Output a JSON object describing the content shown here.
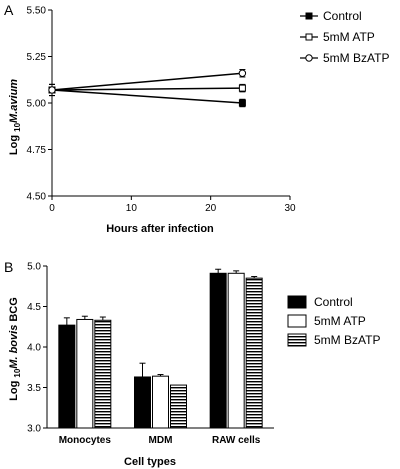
{
  "chart_data": [
    {
      "type": "line",
      "panel_label": "A",
      "xlabel": "Hours after infection",
      "ylabel_prefix": "Log ",
      "ylabel_sub": "10",
      "ylabel_italic": "M.avium",
      "x_ticks": [
        "0",
        "10",
        "20",
        "30"
      ],
      "y_ticks": [
        "4.50",
        "4.75",
        "5.00",
        "5.25",
        "5.50"
      ],
      "xlim": [
        0,
        30
      ],
      "ylim": [
        4.5,
        5.5
      ],
      "legend_position": "right",
      "series": [
        {
          "name": "Control",
          "marker": "filled-square",
          "x": [
            0,
            24
          ],
          "y": [
            5.07,
            5.0
          ],
          "err": [
            0.03,
            0.02
          ]
        },
        {
          "name": "5mM ATP",
          "marker": "open-square",
          "x": [
            0,
            24
          ],
          "y": [
            5.07,
            5.08
          ],
          "err": [
            0.03,
            0.02
          ]
        },
        {
          "name": "5mM BzATP",
          "marker": "open-circle",
          "x": [
            0,
            24
          ],
          "y": [
            5.07,
            5.16
          ],
          "err": [
            0.03,
            0.02
          ]
        }
      ]
    },
    {
      "type": "bar",
      "panel_label": "B",
      "xlabel": "Cell types",
      "ylabel_prefix": "Log ",
      "ylabel_sub": "10",
      "ylabel_italic": "M. bovis",
      "ylabel_suffix": " BCG",
      "categories": [
        "Monocytes",
        "MDM",
        "RAW cells"
      ],
      "y_ticks": [
        "3.0",
        "3.5",
        "4.0",
        "4.5",
        "5.0"
      ],
      "ylim": [
        3.0,
        5.0
      ],
      "legend_position": "right",
      "series": [
        {
          "name": "Control",
          "fill": "solid-black",
          "values": [
            4.27,
            3.63,
            4.91
          ],
          "err": [
            0.09,
            0.17,
            0.05
          ]
        },
        {
          "name": "5mM ATP",
          "fill": "white",
          "values": [
            4.34,
            3.64,
            4.91
          ],
          "err": [
            0.04,
            0.02,
            0.03
          ]
        },
        {
          "name": "5mM BzATP",
          "fill": "horizontal-stripes",
          "values": [
            4.33,
            3.53,
            4.85
          ],
          "err": [
            0.04,
            0.0,
            0.02
          ]
        }
      ]
    }
  ]
}
